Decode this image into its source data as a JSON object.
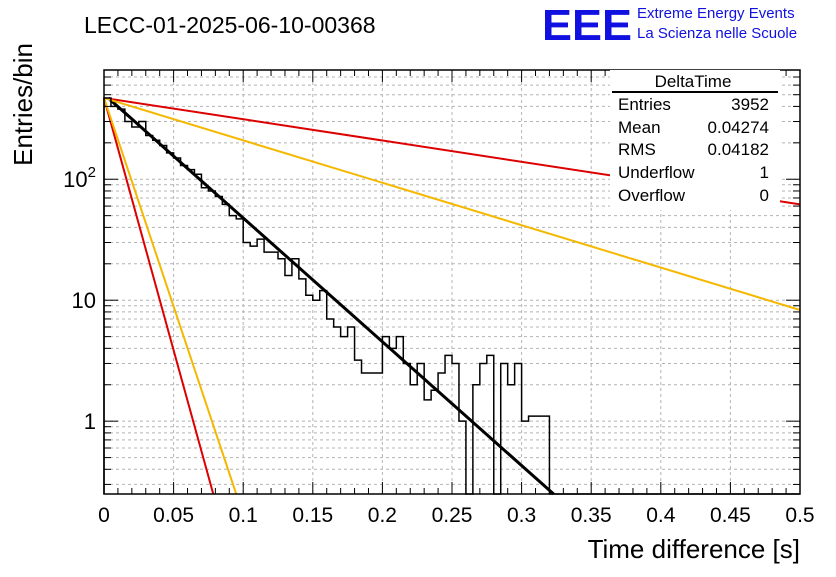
{
  "header": {
    "run_title": "LECC-01-2025-06-10-00368",
    "logo_text": "EEE",
    "logo_line1": "Extreme Energy Events",
    "logo_line2": "La Scienza nelle Scuole"
  },
  "stats_box": {
    "title": "DeltaTime",
    "rows": [
      {
        "label": "Entries",
        "value": "3952"
      },
      {
        "label": "Mean",
        "value": "0.04274"
      },
      {
        "label": "RMS",
        "value": "0.04182"
      },
      {
        "label": "Underflow",
        "value": "1"
      },
      {
        "label": "Overflow",
        "value": "0"
      }
    ]
  },
  "chart_data": {
    "type": "line",
    "title": "LECC-01-2025-06-10-00368",
    "xlabel": "Time difference [s]",
    "ylabel": "Entries/bin",
    "xlim": [
      0,
      0.5
    ],
    "ylim": [
      0.25,
      800
    ],
    "yscale": "log",
    "grid": true,
    "x_ticks": [
      {
        "v": 0,
        "label": "0"
      },
      {
        "v": 0.05,
        "label": "0.05"
      },
      {
        "v": 0.1,
        "label": "0.1"
      },
      {
        "v": 0.15,
        "label": "0.15"
      },
      {
        "v": 0.2,
        "label": "0.2"
      },
      {
        "v": 0.25,
        "label": "0.25"
      },
      {
        "v": 0.3,
        "label": "0.3"
      },
      {
        "v": 0.35,
        "label": "0.35"
      },
      {
        "v": 0.4,
        "label": "0.4"
      },
      {
        "v": 0.45,
        "label": "0.45"
      },
      {
        "v": 0.5,
        "label": "0.5"
      }
    ],
    "y_ticks": [
      {
        "v": 1,
        "label": "1"
      },
      {
        "v": 10,
        "label": "10"
      },
      {
        "v": 100,
        "label": "10",
        "exp": "2"
      }
    ],
    "histogram": {
      "bin_width": 0.005,
      "counts": [
        470,
        400,
        380,
        300,
        270,
        300,
        230,
        210,
        190,
        165,
        150,
        130,
        120,
        110,
        85,
        80,
        72,
        62,
        50,
        47,
        30,
        28,
        32,
        25,
        25,
        22,
        16,
        22,
        15,
        11,
        10,
        12,
        7,
        6,
        5,
        6,
        3.2,
        2.5,
        2.5,
        2.5,
        5,
        4,
        5,
        3,
        2,
        3,
        1.5,
        1.8,
        2.5,
        3.5,
        3,
        1,
        0.25,
        2,
        3,
        3.5,
        0.25,
        3,
        2,
        3,
        1,
        1.1,
        1.1,
        1.1,
        0.25,
        0.25,
        0.25,
        0.25,
        0.25,
        0.25,
        0.25,
        0.25,
        0.25,
        0.25,
        0.25,
        0.25,
        0.25,
        0.25,
        0.25,
        0.25,
        0.25,
        0.25,
        0.25,
        0.25,
        0.25,
        0.25,
        0.25,
        0.25,
        0.25,
        0.25,
        0.25,
        0.25,
        0.25,
        0.25,
        0.25,
        0.25,
        0.25,
        0.25,
        0.25,
        0.25
      ]
    },
    "curves": [
      {
        "color": "#000000",
        "x_start": 0.003,
        "x_end": 0.323,
        "y_start": 470,
        "y_end": 0.25
      },
      {
        "color": "#dd0000",
        "x_start": 0.0,
        "x_end": 0.5,
        "y_start": 470,
        "y_end": 62
      },
      {
        "color": "#f5b800",
        "x_start": 0.0,
        "x_end": 0.5,
        "y_start": 470,
        "y_end": 8.3
      },
      {
        "color": "#dd0000",
        "x_start": 0.0,
        "x_end": 0.0785,
        "y_start": 470,
        "y_end": 0.25
      },
      {
        "color": "#f5b800",
        "x_start": 0.0,
        "x_end": 0.095,
        "y_start": 470,
        "y_end": 0.25
      }
    ]
  },
  "colors": {
    "logo_blue": "#1010e0",
    "fit_black": "#000000",
    "red": "#dd0000",
    "orange": "#f5b800",
    "grid": "#b4b4b4"
  }
}
